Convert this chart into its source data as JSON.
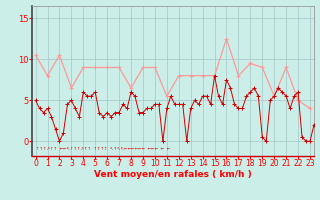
{
  "xlabel": "Vent moyen/en rafales ( km/h )",
  "background_color": "#cceee8",
  "grid_color": "#aacccc",
  "line_color_avg": "#cc0000",
  "line_color_gust": "#ff9999",
  "yticks": [
    0,
    5,
    10,
    15
  ],
  "xticks": [
    0,
    1,
    2,
    3,
    4,
    5,
    6,
    7,
    8,
    9,
    10,
    11,
    12,
    13,
    14,
    15,
    16,
    17,
    18,
    19,
    20,
    21,
    22,
    23
  ],
  "ylim": [
    -1.8,
    16.5
  ],
  "xlim": [
    -0.3,
    23.3
  ],
  "gust_y": [
    10.5,
    8.0,
    10.5,
    6.5,
    9.0,
    9.0,
    9.0,
    9.0,
    6.5,
    9.0,
    9.0,
    5.5,
    8.0,
    8.0,
    8.0,
    8.0,
    12.5,
    8.0,
    9.5,
    9.0,
    5.5,
    9.0,
    5.0,
    4.0
  ],
  "avg_x": [
    0.0,
    0.33,
    0.67,
    1.0,
    1.33,
    1.67,
    2.0,
    2.33,
    2.67,
    3.0,
    3.33,
    3.67,
    4.0,
    4.33,
    4.67,
    5.0,
    5.33,
    5.67,
    6.0,
    6.33,
    6.67,
    7.0,
    7.33,
    7.67,
    8.0,
    8.33,
    8.67,
    9.0,
    9.33,
    9.67,
    10.0,
    10.33,
    10.67,
    11.0,
    11.33,
    11.67,
    12.0,
    12.33,
    12.67,
    13.0,
    13.33,
    13.67,
    14.0,
    14.33,
    14.67,
    15.0,
    15.33,
    15.67,
    16.0,
    16.33,
    16.67,
    17.0,
    17.33,
    17.67,
    18.0,
    18.33,
    18.67,
    19.0,
    19.33,
    19.67,
    20.0,
    20.33,
    20.67,
    21.0,
    21.33,
    21.67,
    22.0,
    22.33,
    22.67,
    23.0,
    23.33,
    23.67
  ],
  "avg_y": [
    5.0,
    4.0,
    3.5,
    4.0,
    3.0,
    1.5,
    0.0,
    1.0,
    4.5,
    5.0,
    4.0,
    3.0,
    6.0,
    5.5,
    5.5,
    6.0,
    3.5,
    3.0,
    3.5,
    3.0,
    3.5,
    3.5,
    4.5,
    4.0,
    6.0,
    5.5,
    3.5,
    3.5,
    4.0,
    4.0,
    4.5,
    4.5,
    0.0,
    4.0,
    5.5,
    4.5,
    4.5,
    4.5,
    0.0,
    4.0,
    5.0,
    4.5,
    5.5,
    5.5,
    4.5,
    8.0,
    5.5,
    4.5,
    7.5,
    6.5,
    4.5,
    4.0,
    4.0,
    5.5,
    6.0,
    6.5,
    5.5,
    0.5,
    0.0,
    5.0,
    5.5,
    6.5,
    6.0,
    5.5,
    4.0,
    5.5,
    6.0,
    0.5,
    0.0,
    0.0,
    2.0,
    3.5
  ],
  "wind_dirs": "↑↑↑↗↑↑  ←←↖↑↑↑↗↑↑  ↑↑↑↑  ↖↑↖↖←←←←←←  ←←←  ←  ←",
  "xlabel_fontsize": 6.5,
  "tick_fontsize": 5.5
}
